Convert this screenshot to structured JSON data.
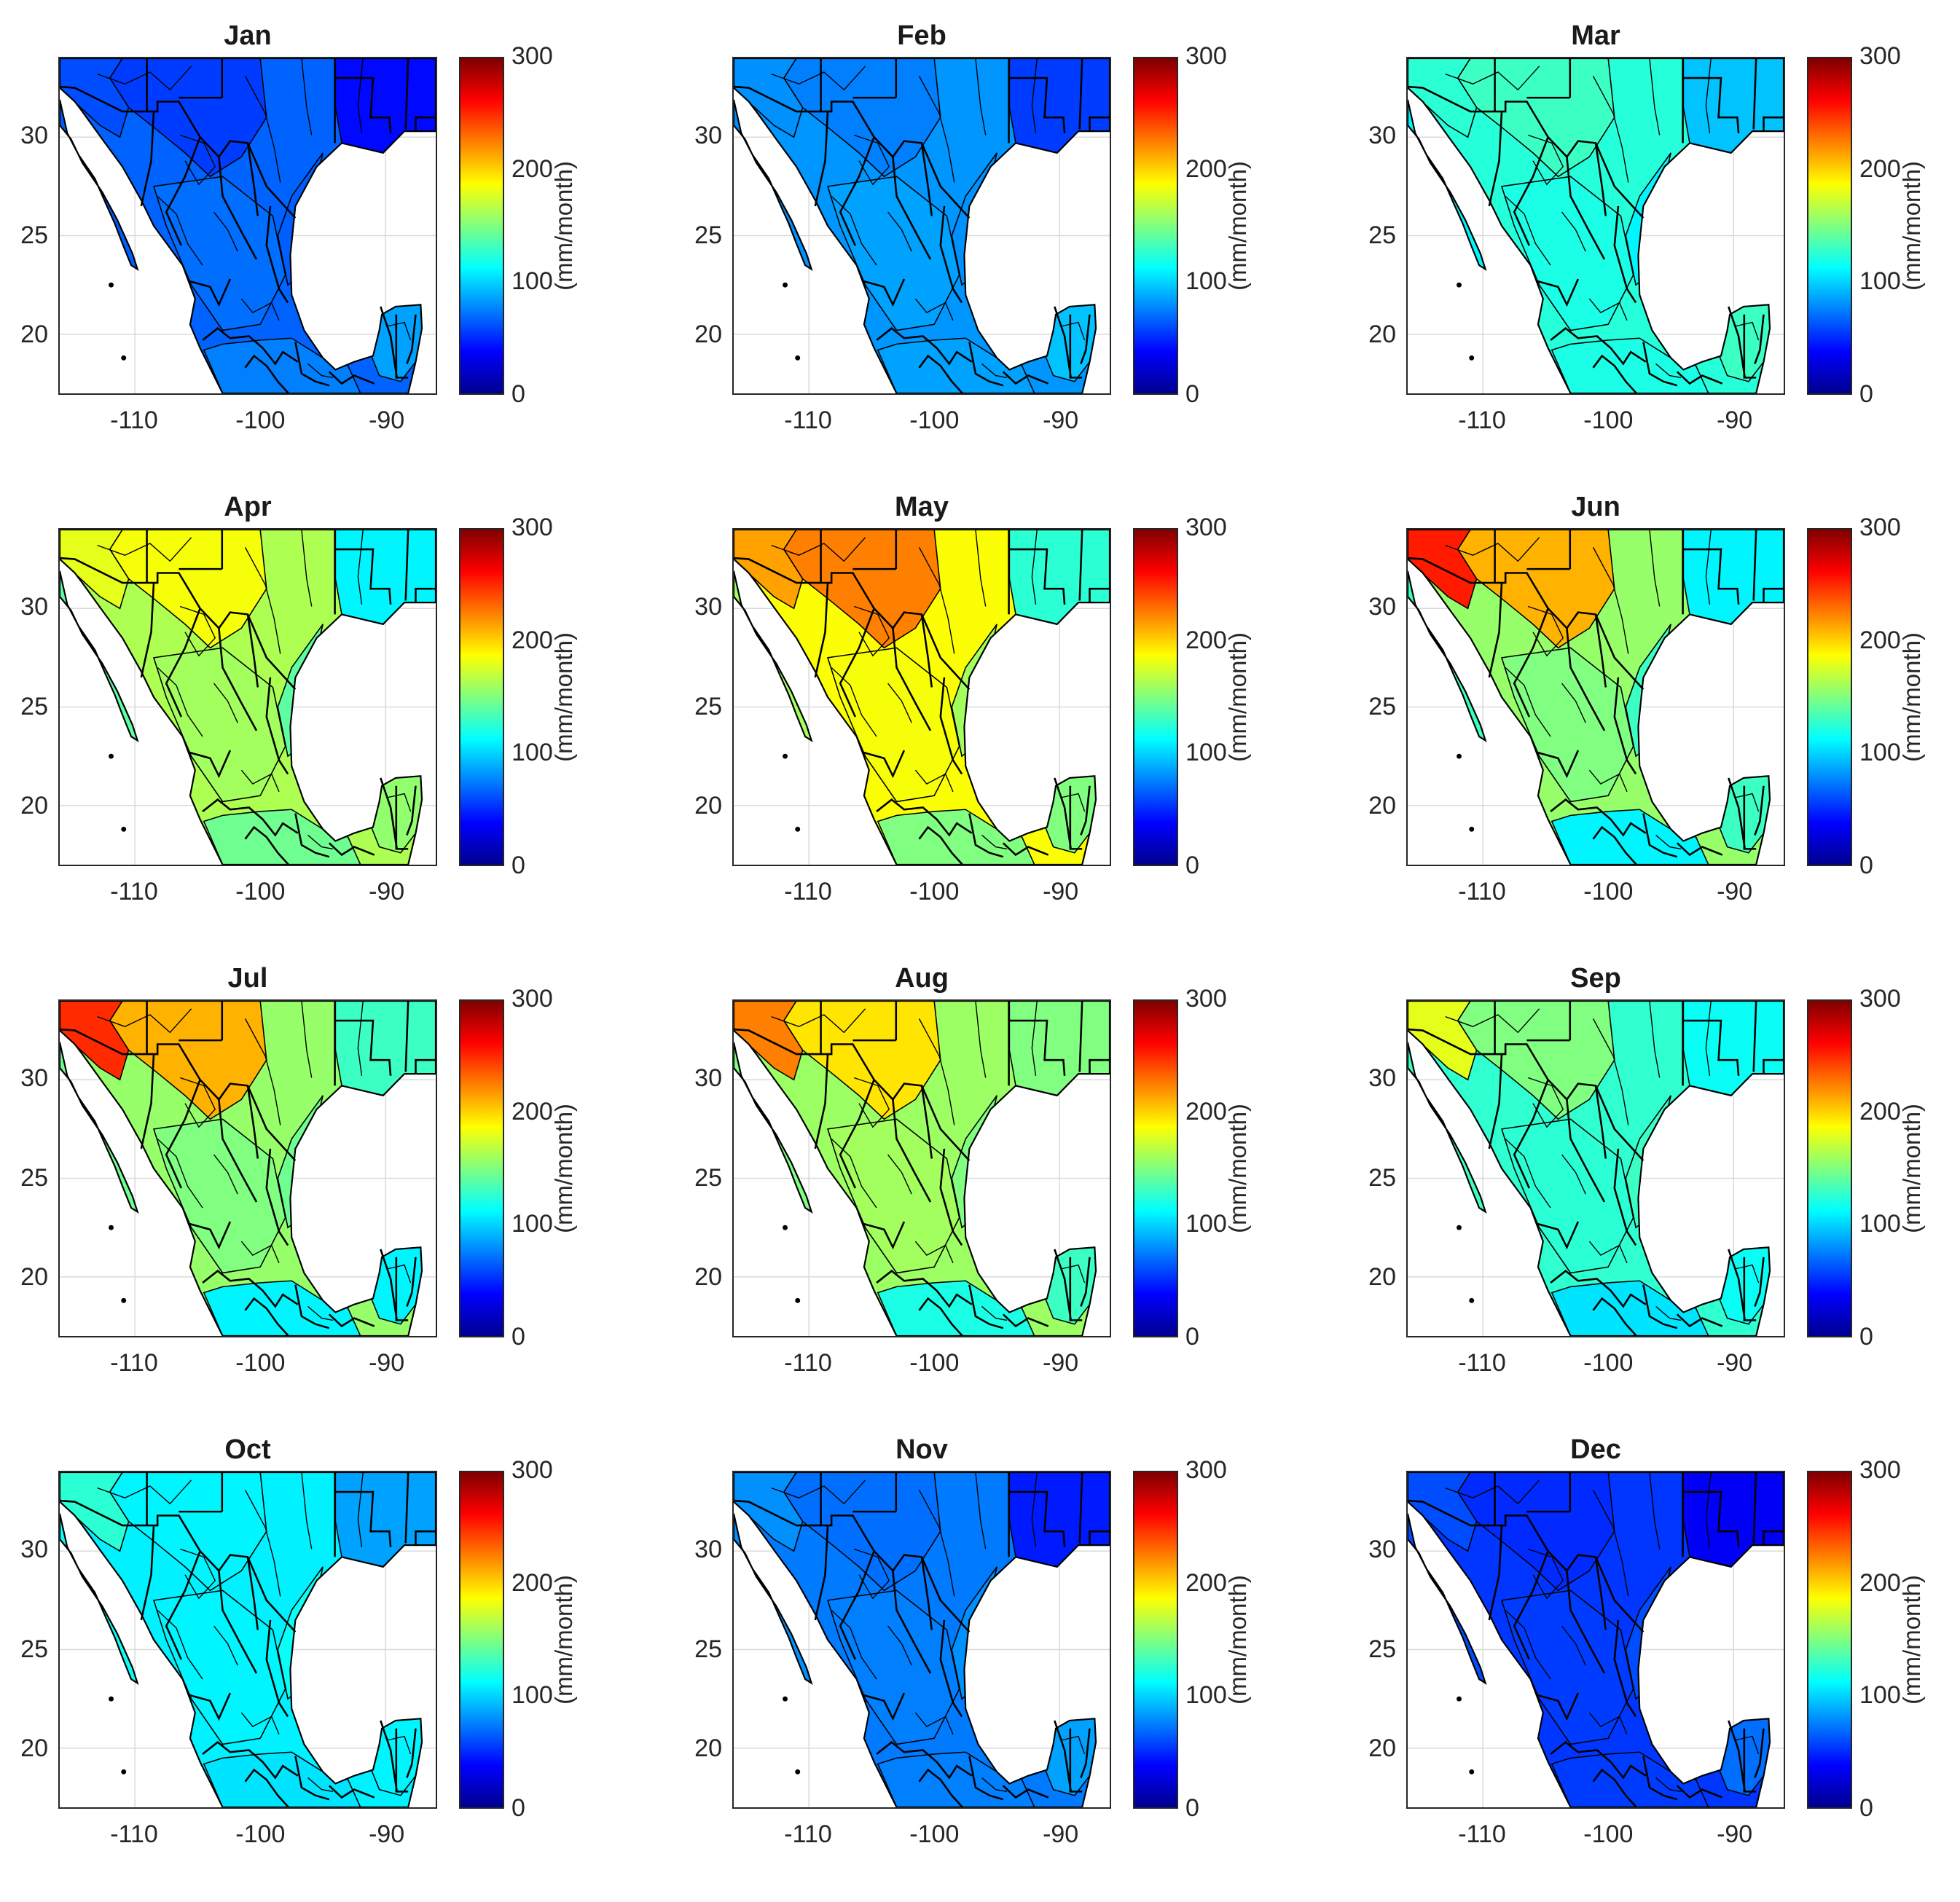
{
  "figure": {
    "colorbar": {
      "label": "(mm/month)",
      "ticks": [
        "0",
        "100",
        "200",
        "300"
      ],
      "range": [
        0,
        300
      ],
      "colormap": "jet"
    },
    "x_ticks": [
      "-110",
      "-100",
      "-90"
    ],
    "y_ticks": [
      "30",
      "25",
      "20"
    ],
    "x_range": [
      -116,
      -86
    ],
    "y_range": [
      17,
      34
    ],
    "panels": [
      {
        "title": "Jan",
        "levels": {
          "north": 55,
          "nw": 60,
          "central": 70,
          "coast": 65,
          "south": 75,
          "yucatan": 85,
          "east": 40
        }
      },
      {
        "title": "Feb",
        "levels": {
          "north": 75,
          "nw": 80,
          "central": 85,
          "coast": 80,
          "south": 85,
          "yucatan": 95,
          "east": 55
        }
      },
      {
        "title": "Mar",
        "levels": {
          "north": 130,
          "nw": 125,
          "central": 120,
          "coast": 110,
          "south": 120,
          "yucatan": 130,
          "east": 95
        }
      },
      {
        "title": "Apr",
        "levels": {
          "north": 185,
          "nw": 180,
          "central": 160,
          "coast": 140,
          "south": 145,
          "yucatan": 155,
          "east": 110
        }
      },
      {
        "title": "May",
        "levels": {
          "north": 225,
          "nw": 215,
          "central": 185,
          "coast": 160,
          "south": 150,
          "yucatan": 150,
          "east": 125
        }
      },
      {
        "title": "Jun",
        "levels": {
          "north": 210,
          "nw": 255,
          "central": 150,
          "coast": 130,
          "south": 110,
          "yucatan": 130,
          "east": 110
        }
      },
      {
        "title": "Jul",
        "levels": {
          "north": 210,
          "nw": 250,
          "central": 150,
          "coast": 145,
          "south": 110,
          "yucatan": 110,
          "east": 130
        }
      },
      {
        "title": "Aug",
        "levels": {
          "north": 195,
          "nw": 225,
          "central": 160,
          "coast": 150,
          "south": 120,
          "yucatan": 130,
          "east": 150
        }
      },
      {
        "title": "Sep",
        "levels": {
          "north": 150,
          "nw": 180,
          "central": 125,
          "coast": 130,
          "south": 105,
          "yucatan": 115,
          "east": 115
        }
      },
      {
        "title": "Oct",
        "levels": {
          "north": 110,
          "nw": 125,
          "central": 110,
          "coast": 115,
          "south": 105,
          "yucatan": 110,
          "east": 85
        }
      },
      {
        "title": "Nov",
        "levels": {
          "north": 70,
          "nw": 80,
          "central": 75,
          "coast": 80,
          "south": 75,
          "yucatan": 85,
          "east": 45
        }
      },
      {
        "title": "Dec",
        "levels": {
          "north": 50,
          "nw": 60,
          "central": 55,
          "coast": 60,
          "south": 55,
          "yucatan": 70,
          "east": 35
        }
      }
    ]
  }
}
